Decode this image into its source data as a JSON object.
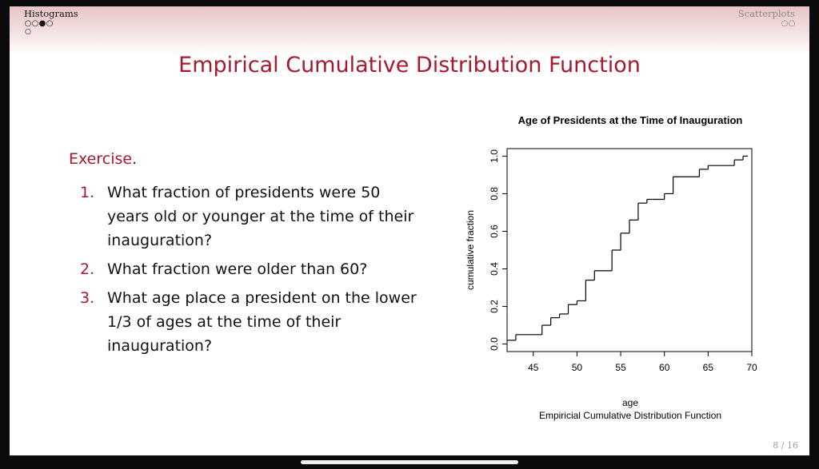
{
  "header": {
    "left_section": "Histograms",
    "right_section": "Scatterplots"
  },
  "slide_title": "Empirical Cumulative Distribution Function",
  "exercise": {
    "label": "Exercise",
    "items": [
      {
        "num": "1.",
        "text": "What fraction of presidents were 50 years old or younger at the time of their inauguration?"
      },
      {
        "num": "2.",
        "text": "What fraction were older than 60?"
      },
      {
        "num": "3.",
        "text": "What age place a president on the lower 1/3 of ages at the time of their inauguration?"
      }
    ]
  },
  "page_number": "8 / 16",
  "chart_data": {
    "type": "line",
    "title": "Age of Presidents at the Time of Inauguration",
    "xlabel": "age",
    "sublabel": "Empiricial Cumulative Distribution Function",
    "ylabel": "cumulative fraction",
    "xlim": [
      42,
      70
    ],
    "ylim": [
      0,
      1
    ],
    "x_ticks": [
      "45",
      "50",
      "55",
      "60",
      "65",
      "70"
    ],
    "y_ticks": [
      "0.0",
      "0.2",
      "0.4",
      "0.6",
      "0.8",
      "1.0"
    ],
    "steps": {
      "x": [
        42,
        43,
        46,
        47,
        48,
        49,
        50,
        51,
        52,
        54,
        55,
        56,
        57,
        58,
        60,
        61,
        64,
        65,
        68,
        69
      ],
      "y": [
        0.02,
        0.05,
        0.1,
        0.14,
        0.16,
        0.21,
        0.23,
        0.34,
        0.39,
        0.5,
        0.59,
        0.66,
        0.75,
        0.77,
        0.8,
        0.89,
        0.93,
        0.95,
        0.98,
        1.0
      ]
    },
    "color": "#000000"
  }
}
